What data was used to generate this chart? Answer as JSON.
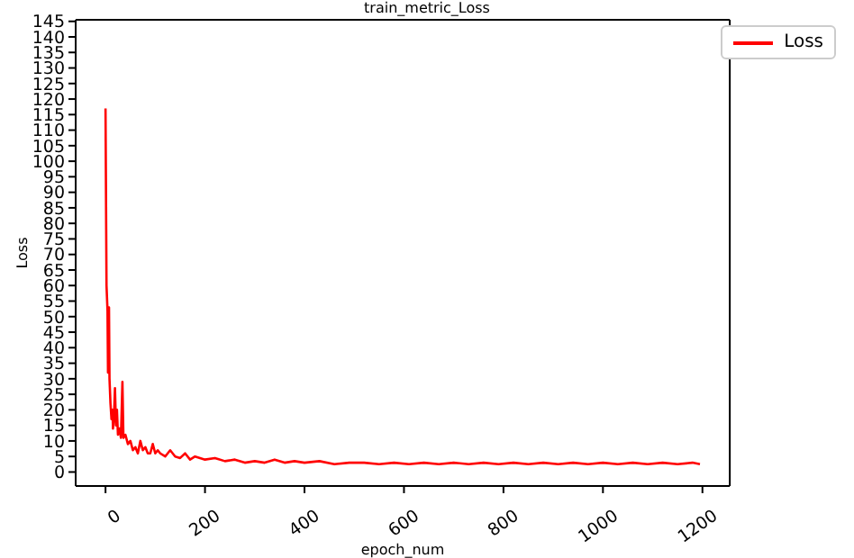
{
  "chart_data": {
    "type": "line",
    "title": "train_metric_Loss",
    "xlabel": "epoch_num",
    "ylabel": "Loss",
    "x": [
      0,
      2,
      4,
      5,
      7,
      8,
      10,
      12,
      14,
      15,
      17,
      19,
      21,
      23,
      25,
      28,
      31,
      34,
      36,
      40,
      45,
      50,
      55,
      60,
      65,
      70,
      75,
      80,
      85,
      90,
      95,
      100,
      105,
      110,
      120,
      130,
      140,
      150,
      160,
      170,
      180,
      200,
      220,
      240,
      260,
      280,
      300,
      320,
      340,
      360,
      380,
      400,
      430,
      460,
      490,
      520,
      550,
      580,
      610,
      640,
      670,
      700,
      730,
      760,
      790,
      820,
      850,
      880,
      910,
      940,
      970,
      1000,
      1030,
      1060,
      1090,
      1120,
      1150,
      1180,
      1195
    ],
    "series": [
      {
        "name": "Loss",
        "color": "#ff0000",
        "values": [
          117,
          60,
          52,
          32,
          53,
          30,
          22,
          17,
          20,
          14,
          18,
          27,
          15,
          20,
          12,
          14,
          11,
          29,
          11,
          12,
          9,
          10,
          7,
          8,
          6,
          10,
          7,
          8,
          6,
          6,
          9,
          6,
          7,
          6,
          5,
          7,
          5,
          4.5,
          6,
          4,
          5,
          4,
          4.5,
          3.5,
          4,
          3,
          3.5,
          3,
          4,
          3,
          3.5,
          3,
          3.5,
          2.5,
          3,
          3,
          2.5,
          3,
          2.5,
          3,
          2.5,
          3,
          2.5,
          3,
          2.5,
          3,
          2.5,
          3,
          2.5,
          3,
          2.5,
          3,
          2.5,
          3,
          2.5,
          3,
          2.5,
          3,
          2.5
        ]
      }
    ],
    "xlim": [
      -60,
      1255
    ],
    "xticks": [
      0,
      200,
      400,
      600,
      800,
      1000,
      1200
    ],
    "ylim": [
      -4.5,
      145.5
    ],
    "yticks": [
      0,
      5,
      10,
      15,
      20,
      25,
      30,
      35,
      40,
      45,
      50,
      55,
      60,
      65,
      70,
      75,
      80,
      85,
      90,
      95,
      100,
      105,
      110,
      115,
      120,
      125,
      130,
      135,
      140,
      145
    ],
    "legend": "top right",
    "grid": false,
    "marker": "none",
    "line_style": "solid"
  }
}
